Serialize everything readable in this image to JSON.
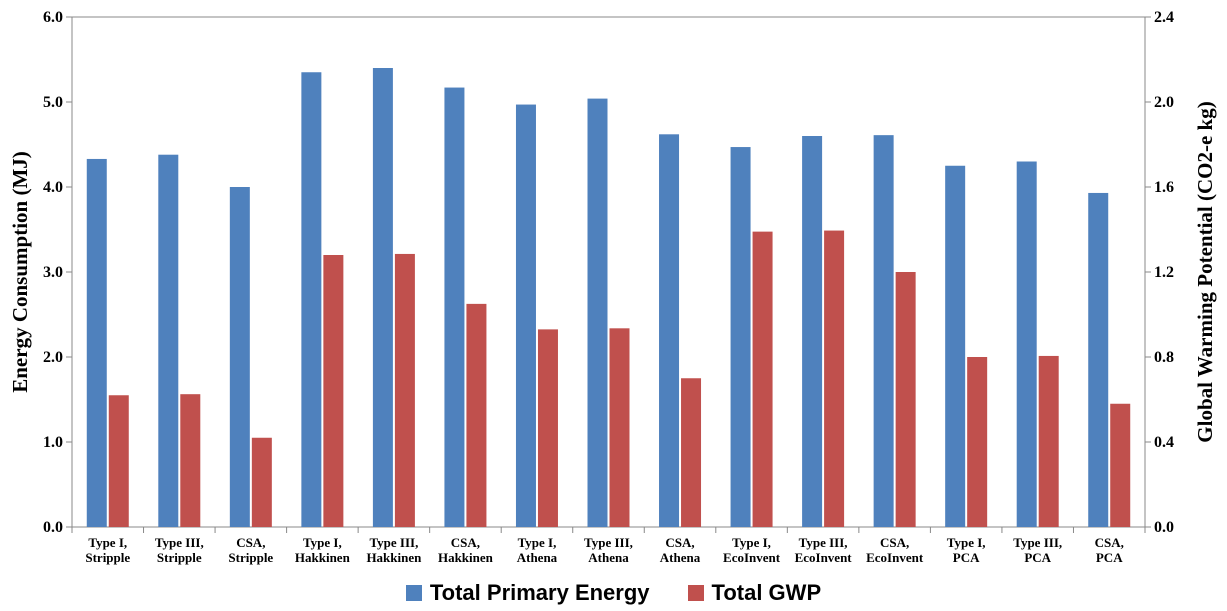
{
  "chart_data": {
    "type": "bar",
    "categories": [
      [
        "Type I,",
        "Stripple"
      ],
      [
        "Type III,",
        "Stripple"
      ],
      [
        "CSA,",
        "Stripple"
      ],
      [
        "Type I,",
        "Hakkinen"
      ],
      [
        "Type III,",
        "Hakkinen"
      ],
      [
        "CSA,",
        "Hakkinen"
      ],
      [
        "Type I,",
        "Athena"
      ],
      [
        "Type III,",
        "Athena"
      ],
      [
        "CSA,",
        "Athena"
      ],
      [
        "Type I,",
        "EcoInvent"
      ],
      [
        "Type III,",
        "EcoInvent"
      ],
      [
        "CSA,",
        "EcoInvent"
      ],
      [
        "Type I,",
        "PCA"
      ],
      [
        "Type III,",
        "PCA"
      ],
      [
        "CSA,",
        "PCA"
      ]
    ],
    "series": [
      {
        "name": "Total Primary Energy",
        "color": "#4f81bd",
        "axis": "left",
        "values": [
          4.33,
          4.38,
          4.0,
          5.35,
          5.4,
          5.17,
          4.97,
          5.04,
          4.62,
          4.47,
          4.6,
          4.61,
          4.25,
          4.3,
          3.93
        ]
      },
      {
        "name": "Total GWP",
        "color": "#c0504d",
        "axis": "right",
        "values": [
          0.62,
          0.625,
          0.42,
          1.28,
          1.285,
          1.05,
          0.93,
          0.935,
          0.7,
          1.39,
          1.395,
          1.2,
          0.8,
          0.805,
          0.58
        ]
      }
    ],
    "y_left": {
      "label": "Energy Consumption (MJ)",
      "min": 0,
      "max": 6.0,
      "ticks": [
        "0.0",
        "1.0",
        "2.0",
        "3.0",
        "4.0",
        "5.0",
        "6.0"
      ]
    },
    "y_right": {
      "label": "Global Warming Potential (CO2-e kg)",
      "min": 0,
      "max": 2.4,
      "ticks": [
        "0.0",
        "0.4",
        "0.8",
        "1.2",
        "1.6",
        "2.0",
        "2.4"
      ]
    },
    "grid": false,
    "legend": {
      "placement": "bottom",
      "entries": [
        "Total Primary Energy",
        "Total GWP"
      ]
    }
  }
}
